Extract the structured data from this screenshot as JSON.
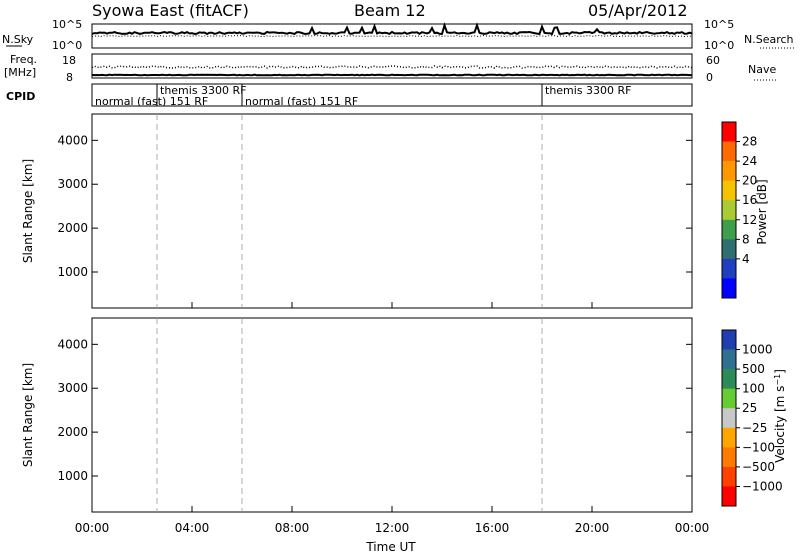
{
  "header": {
    "station": "Syowa East (fitACF)",
    "beam": "Beam 12",
    "date": "05/Apr/2012"
  },
  "top_panels": {
    "nsky_label": "N.Sky",
    "nsky_ticks": [
      "10^5",
      "10^0"
    ],
    "nsearch_label": "N.Search",
    "nsearch_ticks": [
      "10^5",
      "10^0"
    ],
    "freq_label": "Freq.",
    "freq_unit": "[MHz]",
    "freq_ticks": [
      "18",
      "8"
    ],
    "nave_label": "Nave",
    "nave_ticks": [
      "60",
      "0"
    ],
    "cpid_label": "CPID"
  },
  "modes": [
    {
      "label": "normal (fast) 151 RF",
      "start": 0,
      "end": 2.6
    },
    {
      "label": "themis 3300 RF",
      "start": 2.6,
      "end": 6.0
    },
    {
      "label": "normal (fast) 151 RF",
      "start": 6.0,
      "end": 18.0
    },
    {
      "label": "themis 3300 RF",
      "start": 18.0,
      "end": 24.0
    }
  ],
  "mode_labels": [
    {
      "text": "normal (fast) 151 RF",
      "row": 2,
      "x0": 0
    },
    {
      "text": "themis 3300 RF",
      "row": 1,
      "x0": 2.6
    },
    {
      "text": "normal (fast) 151 RF",
      "row": 2,
      "x0": 6.0
    },
    {
      "text": "themis 3300 RF",
      "row": 1,
      "x0": 18.0
    }
  ],
  "chart_data": [
    {
      "type": "heatmap",
      "name": "power",
      "xlabel": "",
      "ylabel": "Slant Range [km]",
      "xlim": [
        0,
        24
      ],
      "ylim": [
        180,
        4600
      ],
      "yticks": [
        "1000",
        "2000",
        "3000",
        "4000"
      ],
      "colorbar_label": "Power [dB]",
      "colorbar_ticks": [
        "28",
        "24",
        "20",
        "16",
        "12",
        "8",
        "4"
      ],
      "colorbar_colors": [
        "#ff0000",
        "#ff6a00",
        "#ff9800",
        "#f4c400",
        "#aacc33",
        "#3f9e4c",
        "#2f6f6f",
        "#1f3fc0",
        "#0000ff"
      ]
    },
    {
      "type": "heatmap",
      "name": "velocity",
      "xlabel": "Time UT",
      "ylabel": "Slant Range [km]",
      "xlim": [
        0,
        24
      ],
      "ylim": [
        180,
        4600
      ],
      "yticks": [
        "1000",
        "2000",
        "3000",
        "4000"
      ],
      "xticks": [
        "00:00",
        "04:00",
        "08:00",
        "12:00",
        "16:00",
        "20:00",
        "00:00"
      ],
      "colorbar_label": "Velocity [m s^-1]",
      "colorbar_ticks": [
        "1000",
        "500",
        "100",
        "25",
        "−25",
        "−100",
        "−500",
        "−1000"
      ],
      "colorbar_colors": [
        "#1f3fb0",
        "#2f6f90",
        "#2e8b57",
        "#66cc33",
        "#c8c8c8",
        "#ffa500",
        "#ff7a00",
        "#ff4000",
        "#ff0000"
      ]
    }
  ]
}
